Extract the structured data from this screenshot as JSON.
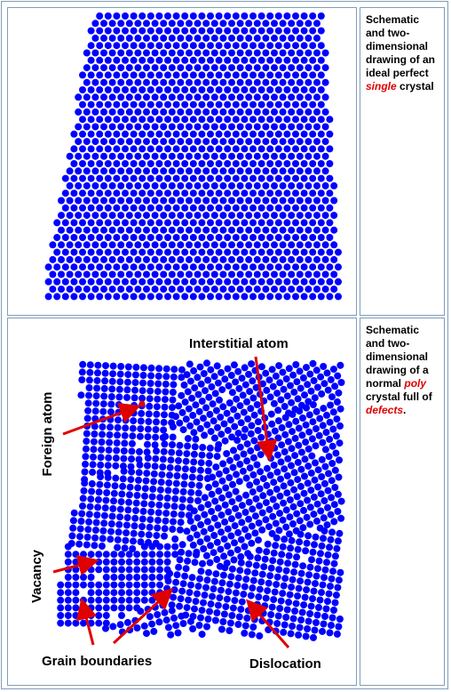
{
  "rows": [
    {
      "caption": {
        "text": "Schematic and two-dimensional drawing of an ideal perfect",
        "highlight": "single",
        "tail": "crystal"
      }
    },
    {
      "caption": {
        "text": "Schematic and two-dimensional drawing of a normal",
        "highlight": "poly",
        "middle": "crystal full of",
        "highlight2": "defects",
        "tail": "."
      },
      "labels": {
        "interstitial": "Interstitial atom",
        "foreign": "Foreign atom",
        "vacancy": "Vacancy",
        "grain": "Grain boundaries",
        "dislocation": "Dislocation"
      }
    }
  ]
}
